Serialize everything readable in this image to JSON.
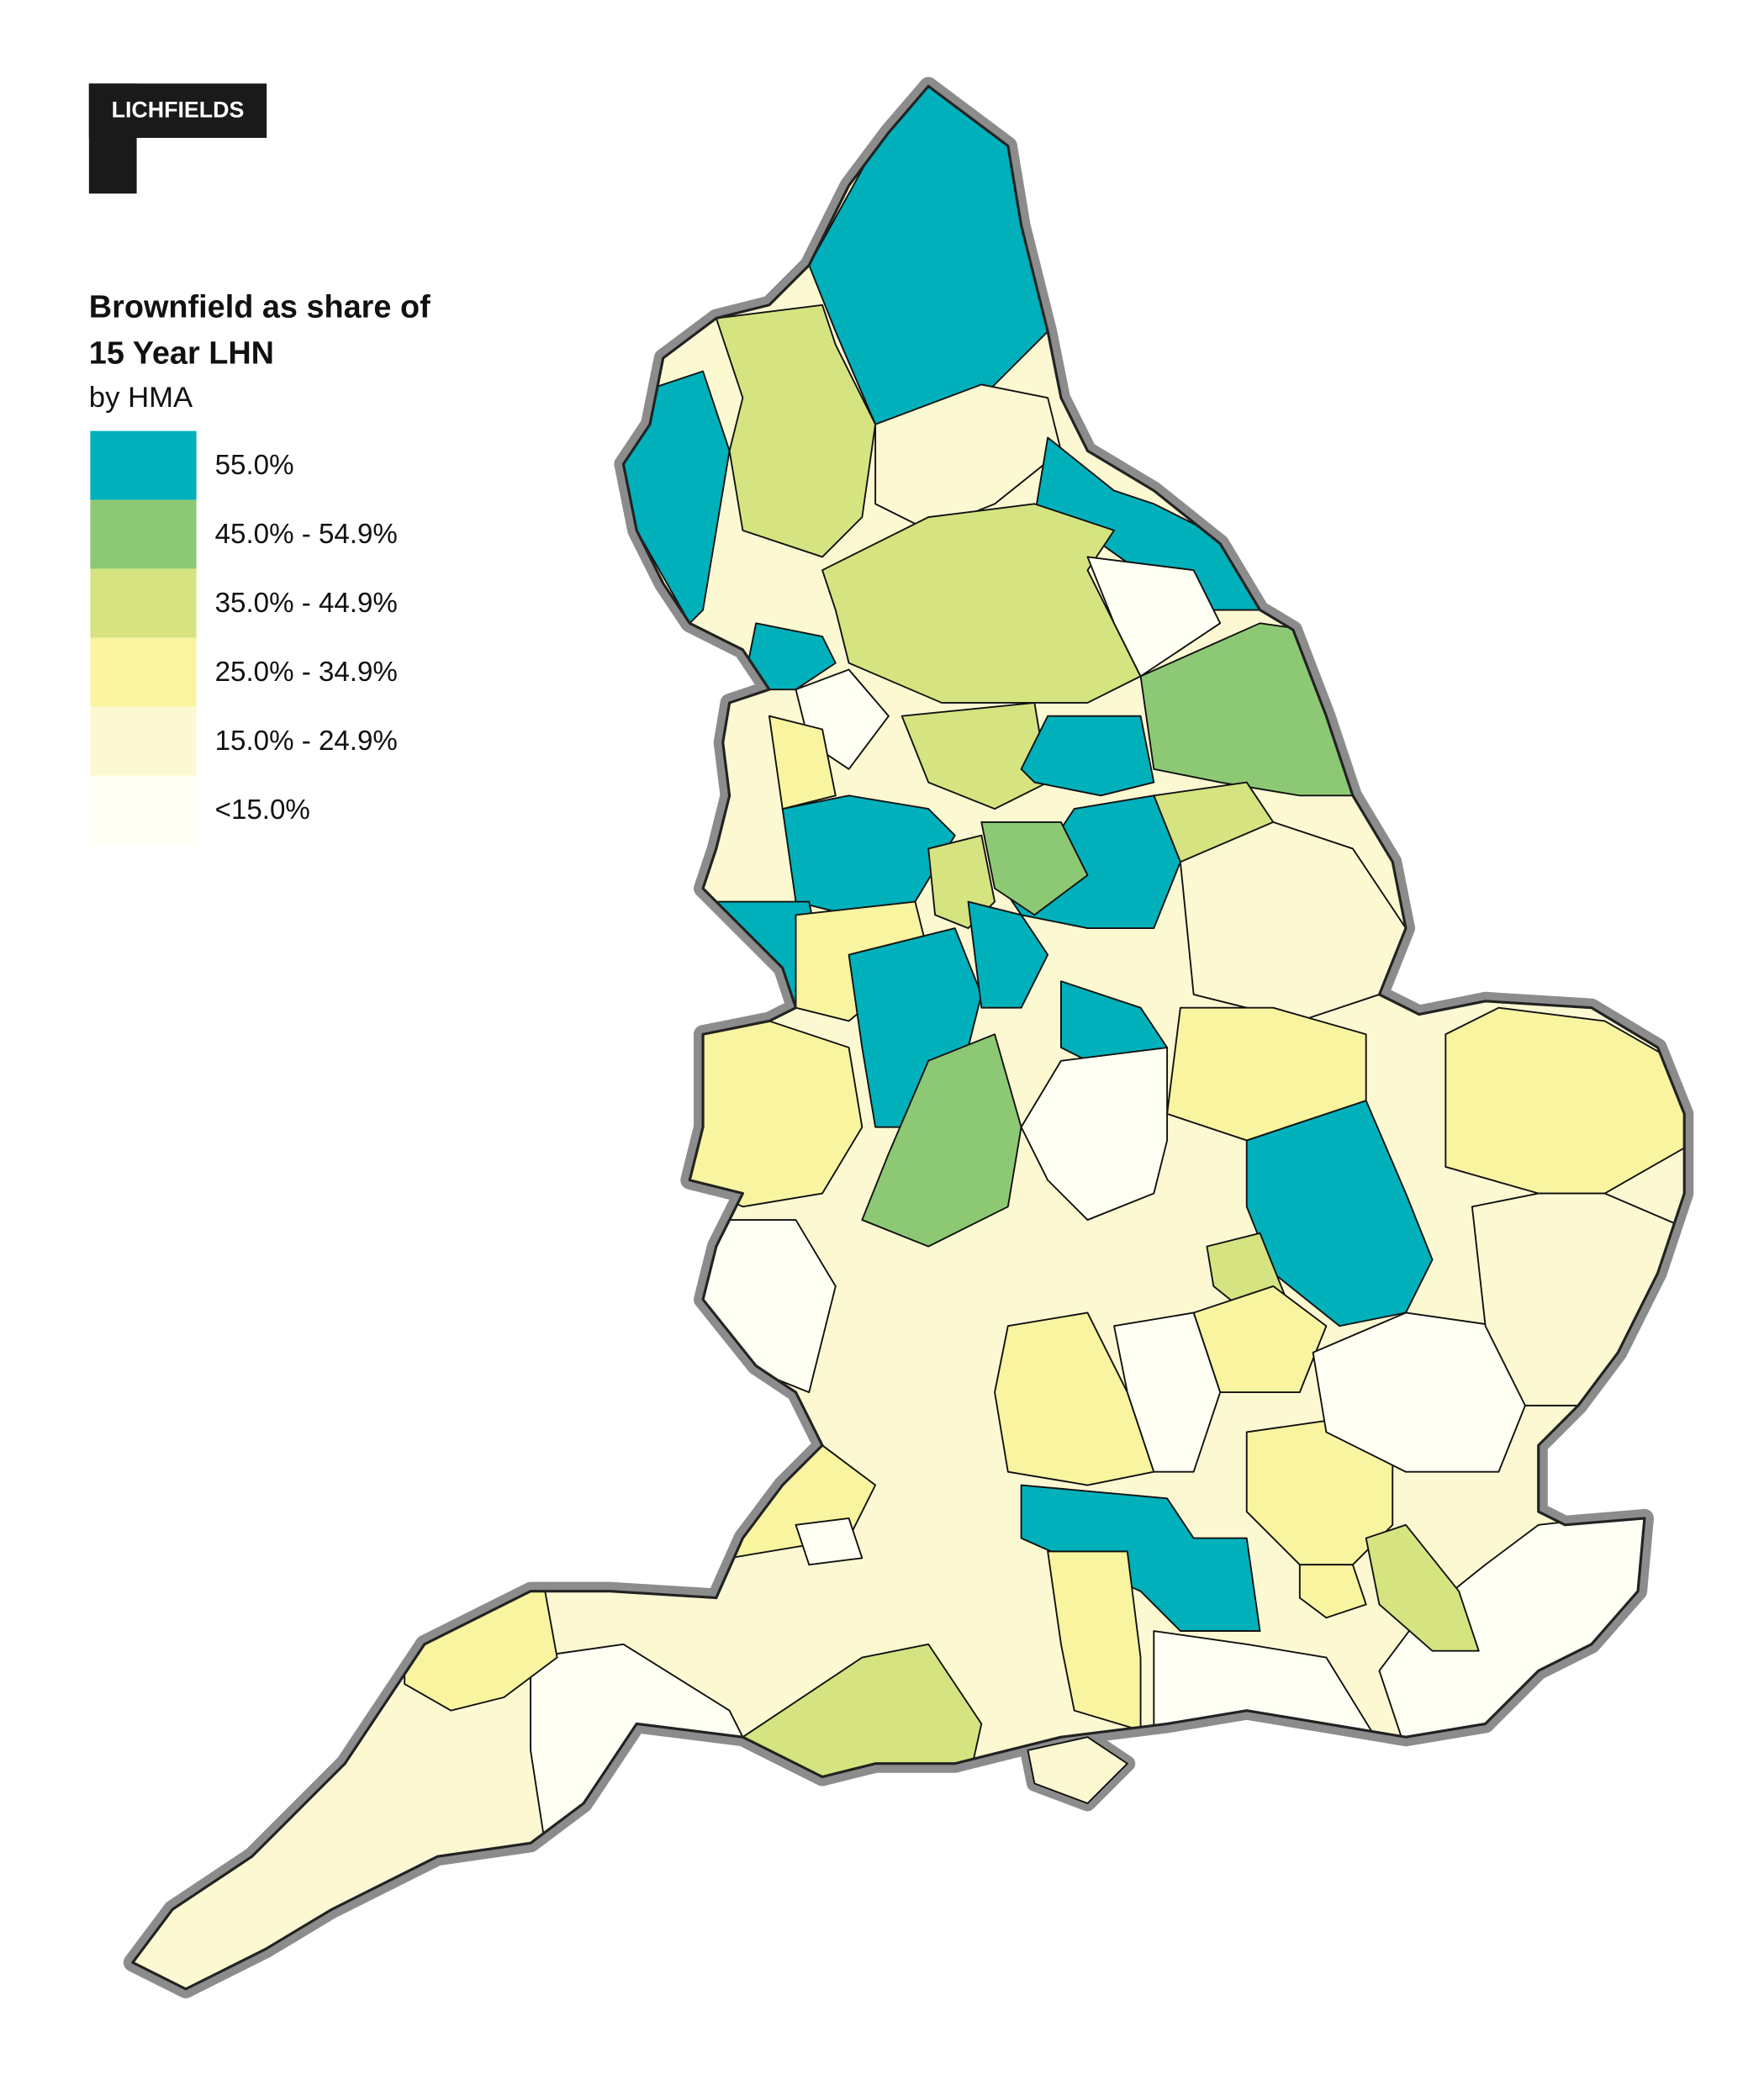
{
  "logo": "LICHFIELDS",
  "legend": {
    "title_lines": [
      "Brownfield as share of",
      "15 Year LHN"
    ],
    "subtitle": "by HMA",
    "items": [
      {
        "label": "55.0%",
        "color": "#00b0bb"
      },
      {
        "label": "45.0% - 54.9%",
        "color": "#8dc975"
      },
      {
        "label": "35.0% - 44.9%",
        "color": "#d5e480"
      },
      {
        "label": "25.0% - 34.9%",
        "color": "#f8f4a0"
      },
      {
        "label": "15.0% - 24.9%",
        "color": "#fcf9d2"
      },
      {
        "label": "<15.0%",
        "color": "#fffff3"
      }
    ]
  }
}
